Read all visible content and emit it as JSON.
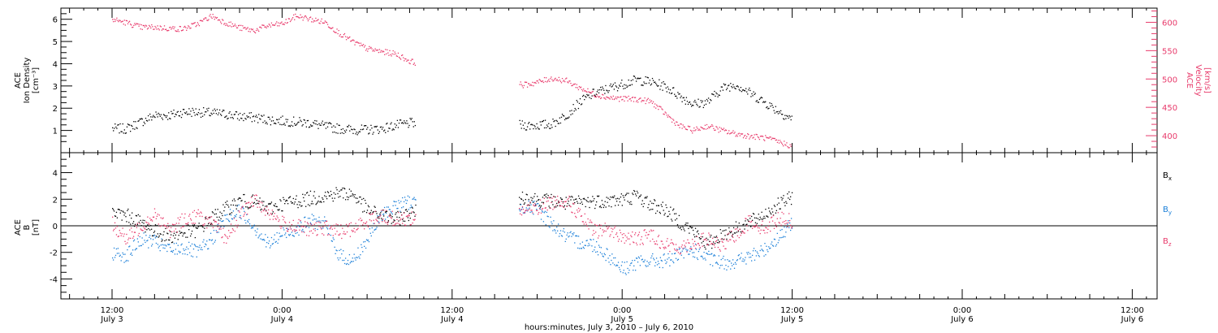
{
  "chart_data": [
    {
      "type": "scatter",
      "panel": "top",
      "ylabel_left": [
        "ACE",
        "Ion Density",
        "[cm⁻³]"
      ],
      "ylabel_right": [
        "ACE",
        "Velocity",
        "[km/s]"
      ],
      "ylim_left": [
        0,
        6.5
      ],
      "ylim_right": [
        370,
        625
      ],
      "left_ticks": [
        1,
        2,
        3,
        4,
        5,
        6
      ],
      "right_ticks": [
        400,
        450,
        500,
        550,
        600
      ],
      "grid": false,
      "x_hours_range": [
        0,
        48
      ],
      "data_gap_hours": [
        21.4,
        28.7
      ],
      "series": [
        {
          "axis": "left",
          "color": "#000000",
          "x": [
            0,
            1,
            2,
            3,
            4,
            5,
            6,
            7,
            8,
            9,
            10,
            11,
            12,
            13,
            14,
            15,
            16,
            17,
            18,
            19,
            20,
            21,
            29,
            30,
            31,
            32,
            33,
            34,
            35,
            36,
            37,
            38,
            39,
            40,
            41,
            42,
            43,
            44,
            45,
            46,
            47,
            48
          ],
          "y": [
            1.1,
            1.1,
            1.4,
            1.7,
            1.7,
            1.85,
            1.85,
            1.8,
            1.75,
            1.65,
            1.6,
            1.5,
            1.45,
            1.4,
            1.35,
            1.2,
            1.1,
            1.05,
            1.05,
            1.1,
            1.25,
            1.35,
            1.25,
            1.25,
            1.3,
            1.7,
            2.3,
            2.7,
            2.9,
            3.1,
            3.3,
            3.2,
            3.0,
            2.6,
            2.2,
            2.3,
            2.9,
            3.1,
            2.7,
            2.3,
            1.9,
            1.5
          ]
        },
        {
          "axis": "right",
          "color": "#e83a6b",
          "x": [
            0,
            1,
            2,
            3,
            4,
            5,
            6,
            7,
            8,
            9,
            10,
            11,
            12,
            13,
            14,
            15,
            16,
            17,
            18,
            19,
            20,
            21,
            29,
            30,
            31,
            32,
            33,
            34,
            35,
            36,
            37,
            38,
            39,
            40,
            41,
            42,
            43,
            44,
            45,
            46,
            47,
            48
          ],
          "y": [
            606,
            600,
            592,
            592,
            590,
            589,
            598,
            612,
            600,
            591,
            586,
            595,
            598,
            612,
            606,
            601,
            582,
            566,
            554,
            549,
            545,
            532,
            490,
            495,
            502,
            498,
            485,
            474,
            468,
            466,
            465,
            461,
            440,
            418,
            410,
            418,
            410,
            404,
            400,
            397,
            390,
            382
          ]
        }
      ]
    },
    {
      "type": "scatter",
      "panel": "bottom",
      "ylabel": [
        "ACE",
        "B",
        "[nT]"
      ],
      "ylim": [
        -5.5,
        5.5
      ],
      "ticks": [
        -4,
        -2,
        0,
        2,
        4
      ],
      "grid": false,
      "zero_line": true,
      "x_hours_range": [
        0,
        48
      ],
      "data_gap_hours": [
        21.4,
        28.7
      ],
      "series": [
        {
          "name": "Bx",
          "color": "#000000",
          "x": [
            0,
            1,
            2,
            3,
            4,
            5,
            6,
            7,
            8,
            9,
            10,
            11,
            12,
            13,
            14,
            15,
            16,
            17,
            18,
            19,
            20,
            21,
            29,
            30,
            31,
            32,
            33,
            34,
            35,
            36,
            37,
            38,
            39,
            40,
            41,
            42,
            43,
            44,
            45,
            46,
            47,
            48
          ],
          "y": [
            1.0,
            0.8,
            0.3,
            -0.4,
            -0.8,
            -0.5,
            -0.3,
            0.6,
            1.3,
            1.9,
            1.8,
            1.3,
            1.7,
            1.9,
            2.1,
            2.3,
            2.5,
            2.4,
            1.2,
            0.8,
            0.5,
            1.0,
            2.2,
            2.0,
            1.9,
            1.7,
            1.8,
            1.9,
            1.9,
            2.0,
            2.3,
            1.6,
            1.3,
            0.4,
            -0.4,
            -1.4,
            -0.6,
            -0.2,
            0.3,
            0.9,
            1.6,
            2.2
          ]
        },
        {
          "name": "By",
          "color": "#1b7fd8",
          "x": [
            0,
            1,
            2,
            3,
            4,
            5,
            6,
            7,
            8,
            9,
            10,
            11,
            12,
            13,
            14,
            15,
            16,
            17,
            18,
            19,
            20,
            21,
            29,
            30,
            31,
            32,
            33,
            34,
            35,
            36,
            37,
            38,
            39,
            40,
            41,
            42,
            43,
            44,
            45,
            46,
            47,
            48
          ],
          "y": [
            -2.0,
            -2.2,
            -1.0,
            -1.2,
            -1.8,
            -1.6,
            -2.0,
            -1.0,
            0.6,
            1.2,
            0.0,
            -1.4,
            -0.6,
            -0.2,
            0.4,
            0.2,
            -2.2,
            -2.6,
            -1.0,
            0.8,
            1.6,
            1.8,
            1.5,
            1.3,
            0.2,
            -0.8,
            -1.2,
            -1.4,
            -2.2,
            -3.2,
            -2.8,
            -2.6,
            -2.6,
            -2.2,
            -1.8,
            -2.4,
            -2.8,
            -2.6,
            -2.3,
            -1.8,
            -0.8,
            0.2
          ]
        },
        {
          "name": "Bz",
          "color": "#e83a6b",
          "x": [
            0,
            1,
            2,
            3,
            4,
            5,
            6,
            7,
            8,
            9,
            10,
            11,
            12,
            13,
            14,
            15,
            16,
            17,
            18,
            19,
            20,
            21,
            29,
            30,
            31,
            32,
            33,
            34,
            35,
            36,
            37,
            38,
            39,
            40,
            41,
            42,
            43,
            44,
            45,
            46,
            47,
            48
          ],
          "y": [
            0.2,
            -1.0,
            0.0,
            1.0,
            -0.4,
            0.5,
            0.8,
            0.2,
            -0.9,
            0.8,
            2.0,
            1.1,
            0.2,
            0.0,
            -0.3,
            -0.1,
            -0.4,
            -0.2,
            0.5,
            0.8,
            0.5,
            0.6,
            1.2,
            1.4,
            1.8,
            2.0,
            0.8,
            -0.4,
            -0.2,
            -0.8,
            -1.0,
            -0.6,
            -1.4,
            -1.6,
            -1.2,
            -1.0,
            -1.5,
            -0.6,
            0.4,
            -0.2,
            0.6,
            0.4
          ]
        }
      ],
      "legend": [
        {
          "label": "B",
          "sub": "x",
          "color": "#000000"
        },
        {
          "label": "B",
          "sub": "y",
          "color": "#1b7fd8"
        },
        {
          "label": "B",
          "sub": "z",
          "color": "#e83a6b"
        }
      ]
    }
  ],
  "x_axis": {
    "hour_ticks": [
      {
        "hours": 0,
        "time": "12:00",
        "date": "July 3"
      },
      {
        "hours": 12,
        "time": "0:00",
        "date": "July 4"
      },
      {
        "hours": 24,
        "time": "12:00",
        "date": "July 4"
      },
      {
        "hours": 36,
        "time": "0:00",
        "date": "July 5"
      },
      {
        "hours": 48,
        "time": "12:00",
        "date": "July 5"
      },
      {
        "hours": 60,
        "time": "0:00",
        "date": "July 6"
      },
      {
        "hours": 72,
        "time": "12:00",
        "date": "July 6"
      }
    ],
    "caption": "hours:minutes,  July  3, 2010  –  July  6, 2010"
  }
}
